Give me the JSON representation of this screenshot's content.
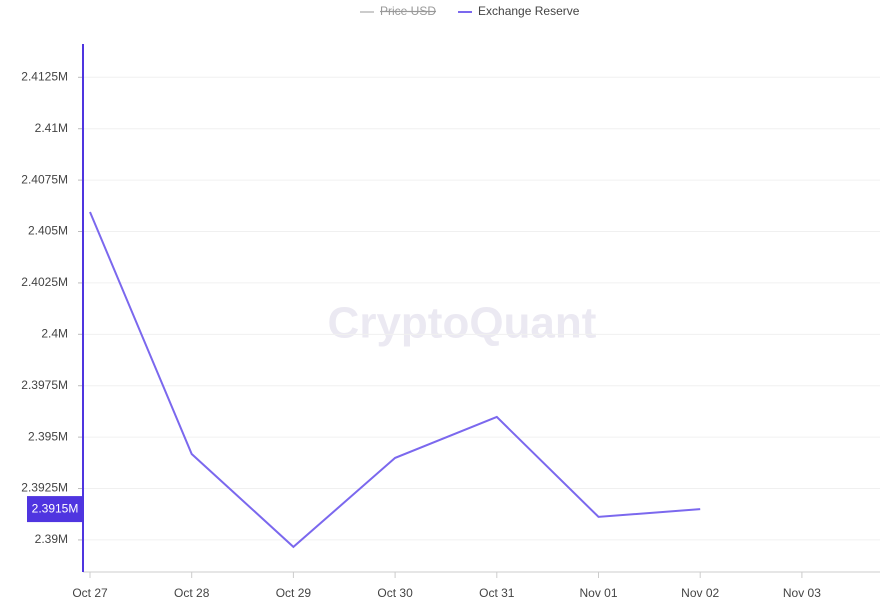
{
  "chart_data": {
    "type": "line",
    "watermark": "CryptoQuant",
    "categories": [
      "Oct 27",
      "Oct 28",
      "Oct 29",
      "Oct 30",
      "Oct 31",
      "Nov 01",
      "Nov 02",
      "Nov 03"
    ],
    "series": [
      {
        "name": "Price USD",
        "color": "#cccccc",
        "hidden": true,
        "values": [
          null,
          null,
          null,
          null,
          null,
          null,
          null,
          null
        ]
      },
      {
        "name": "Exchange Reserve",
        "color": "#7b68ee",
        "values": [
          2405950,
          2394180,
          2389660,
          2393990,
          2395980,
          2391120,
          2391500,
          null
        ],
        "value_labels": [
          null,
          null,
          null,
          null,
          null,
          null,
          "2.3915M",
          null
        ]
      }
    ],
    "ylim": [
      2388440,
      2414120
    ],
    "yticks": [
      {
        "value": 2390000,
        "label": "2.39M"
      },
      {
        "value": 2392500,
        "label": "2.3925M"
      },
      {
        "value": 2395000,
        "label": "2.395M"
      },
      {
        "value": 2397500,
        "label": "2.3975M"
      },
      {
        "value": 2400000,
        "label": "2.4M"
      },
      {
        "value": 2402500,
        "label": "2.4025M"
      },
      {
        "value": 2405000,
        "label": "2.405M"
      },
      {
        "value": 2407500,
        "label": "2.4075M"
      },
      {
        "value": 2410000,
        "label": "2.41M"
      },
      {
        "value": 2412500,
        "label": "2.4125M"
      }
    ],
    "grid": true
  }
}
